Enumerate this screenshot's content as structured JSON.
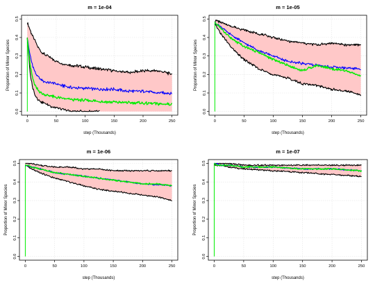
{
  "chart_data": [
    {
      "type": "line",
      "title": "m = 1e-04",
      "xlabel": "step (Thousands)",
      "ylabel": "Proportion of Minor Species",
      "xlim": [
        0,
        250
      ],
      "ylim": [
        0,
        0.5
      ],
      "x_ticks": [
        0,
        50,
        100,
        150,
        200,
        250
      ],
      "y_ticks": [
        0.0,
        0.1,
        0.2,
        0.3,
        0.4,
        0.5
      ],
      "grid": true,
      "x": [
        0,
        5,
        10,
        15,
        20,
        25,
        30,
        40,
        50,
        60,
        75,
        100,
        125,
        150,
        175,
        200,
        225,
        240,
        250
      ],
      "series": [
        {
          "color": "#000000",
          "values": [
            0.48,
            0.44,
            0.4,
            0.37,
            0.34,
            0.32,
            0.31,
            0.29,
            0.27,
            0.26,
            0.25,
            0.24,
            0.23,
            0.22,
            0.21,
            0.22,
            0.22,
            0.21,
            0.2
          ]
        },
        {
          "color": "#0000ff",
          "values": [
            0.4,
            0.3,
            0.24,
            0.2,
            0.18,
            0.17,
            0.16,
            0.155,
            0.15,
            0.14,
            0.13,
            0.125,
            0.12,
            0.12,
            0.11,
            0.11,
            0.1,
            0.1,
            0.1
          ]
        },
        {
          "color": "#00ee00",
          "values": [
            0.4,
            0.25,
            0.17,
            0.13,
            0.11,
            0.1,
            0.09,
            0.085,
            0.075,
            0.07,
            0.065,
            0.06,
            0.055,
            0.05,
            0.048,
            0.045,
            0.042,
            0.04,
            0.04
          ]
        },
        {
          "color": "#000000",
          "values": [
            0.4,
            0.2,
            0.12,
            0.08,
            0.06,
            0.05,
            0.045,
            0.03,
            0.02,
            0.01,
            0.0,
            0.0,
            0.0,
            null,
            null,
            null,
            null,
            null,
            null
          ]
        }
      ]
    },
    {
      "type": "line",
      "title": "m = 1e-05",
      "xlabel": "step (Thousands)",
      "ylabel": "Proportion of Minor Species",
      "xlim": [
        0,
        250
      ],
      "ylim": [
        0,
        0.5
      ],
      "x_ticks": [
        0,
        50,
        100,
        150,
        200,
        250
      ],
      "y_ticks": [
        0.0,
        0.1,
        0.2,
        0.3,
        0.4,
        0.5
      ],
      "grid": true,
      "x": [
        0,
        5,
        10,
        20,
        30,
        40,
        50,
        75,
        100,
        125,
        150,
        175,
        200,
        225,
        250
      ],
      "series": [
        {
          "color": "#000000",
          "values": [
            0.49,
            0.49,
            0.48,
            0.47,
            0.46,
            0.45,
            0.44,
            0.42,
            0.4,
            0.38,
            0.37,
            0.36,
            0.37,
            0.36,
            0.36
          ]
        },
        {
          "color": "#0000ff",
          "values": [
            0.48,
            0.47,
            0.46,
            0.43,
            0.41,
            0.39,
            0.37,
            0.33,
            0.3,
            0.27,
            0.26,
            0.25,
            0.24,
            0.235,
            0.23
          ]
        },
        {
          "color": "#00ee00",
          "values": [
            0.48,
            0.47,
            0.45,
            0.42,
            0.39,
            0.37,
            0.35,
            0.32,
            0.28,
            0.25,
            0.22,
            0.25,
            0.23,
            0.22,
            0.19
          ]
        },
        {
          "color": "#000000",
          "values": [
            0.47,
            0.45,
            0.42,
            0.38,
            0.34,
            0.31,
            0.28,
            0.23,
            0.2,
            0.18,
            0.15,
            0.14,
            0.12,
            0.11,
            0.09
          ]
        }
      ]
    },
    {
      "type": "line",
      "title": "m = 1e-06",
      "xlabel": "step (Thousands)",
      "ylabel": "Proportion of Minor Species",
      "xlim": [
        0,
        250
      ],
      "ylim": [
        0,
        0.5
      ],
      "x_ticks": [
        0,
        50,
        100,
        150,
        200,
        250
      ],
      "y_ticks": [
        0.0,
        0.1,
        0.2,
        0.3,
        0.4,
        0.5
      ],
      "grid": true,
      "x": [
        0,
        5,
        10,
        25,
        50,
        75,
        100,
        125,
        150,
        175,
        200,
        225,
        250
      ],
      "series": [
        {
          "color": "#000000",
          "values": [
            0.5,
            0.5,
            0.5,
            0.49,
            0.48,
            0.48,
            0.47,
            0.47,
            0.46,
            0.46,
            0.46,
            0.46,
            0.46
          ]
        },
        {
          "color": "#0000ff",
          "values": [
            0.49,
            0.49,
            0.48,
            0.47,
            0.45,
            0.44,
            0.43,
            0.42,
            0.41,
            0.4,
            0.39,
            0.385,
            0.38
          ]
        },
        {
          "color": "#00ee00",
          "values": [
            0.49,
            0.49,
            0.48,
            0.47,
            0.45,
            0.44,
            0.43,
            0.42,
            0.41,
            0.4,
            0.39,
            0.39,
            0.38
          ]
        },
        {
          "color": "#000000",
          "values": [
            0.49,
            0.48,
            0.47,
            0.45,
            0.42,
            0.4,
            0.38,
            0.36,
            0.35,
            0.34,
            0.33,
            0.32,
            0.3
          ]
        }
      ]
    },
    {
      "type": "line",
      "title": "m = 1e-07",
      "xlabel": "step (Thousands)",
      "ylabel": "Proportion of Minor Species",
      "xlim": [
        0,
        250
      ],
      "ylim": [
        0,
        0.5
      ],
      "x_ticks": [
        0,
        50,
        100,
        150,
        200,
        250
      ],
      "y_ticks": [
        0.0,
        0.1,
        0.2,
        0.3,
        0.4,
        0.5
      ],
      "grid": true,
      "x": [
        0,
        5,
        10,
        25,
        50,
        100,
        150,
        200,
        250
      ],
      "series": [
        {
          "color": "#000000",
          "values": [
            0.5,
            0.5,
            0.5,
            0.5,
            0.49,
            0.49,
            0.49,
            0.49,
            0.49
          ]
        },
        {
          "color": "#0000ff",
          "values": [
            0.5,
            0.5,
            0.49,
            0.49,
            0.48,
            0.48,
            0.47,
            0.47,
            0.46
          ]
        },
        {
          "color": "#00ee00",
          "values": [
            0.5,
            0.49,
            0.49,
            0.49,
            0.48,
            0.48,
            0.47,
            0.47,
            0.46
          ]
        },
        {
          "color": "#000000",
          "values": [
            0.49,
            0.49,
            0.49,
            0.48,
            0.47,
            0.46,
            0.45,
            0.44,
            0.43
          ]
        }
      ]
    }
  ],
  "colors": {
    "band_fill": "#ffc8c8",
    "grid": "#e4e4e4",
    "initial_spike": "#00ee00"
  }
}
